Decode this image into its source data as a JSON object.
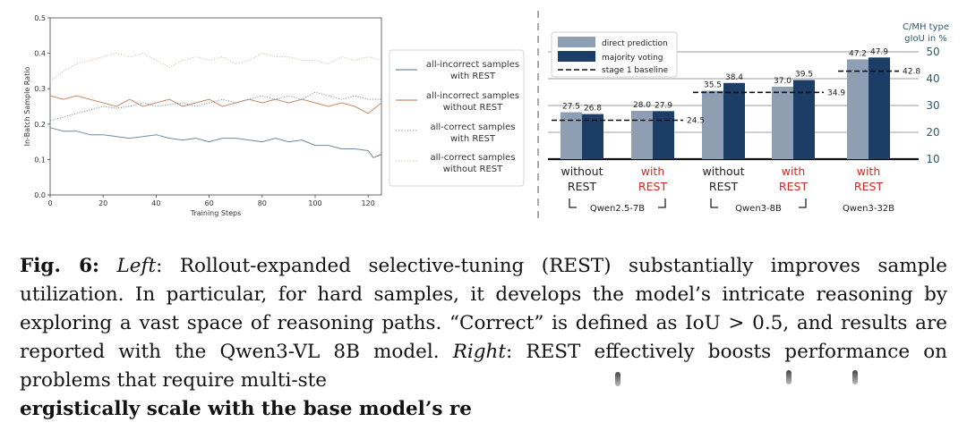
{
  "chart_data": [
    {
      "type": "line",
      "xlabel": "Training Steps",
      "ylabel": "In-Batch Sample Ratio",
      "xlim": [
        0,
        125
      ],
      "ylim": [
        0.0,
        0.5
      ],
      "xticks": [
        0,
        20,
        40,
        60,
        80,
        100,
        120
      ],
      "yticks": [
        "0.0",
        "0.1",
        "0.2",
        "0.3",
        "0.4",
        "0.5"
      ],
      "legend_position": "right",
      "series": [
        {
          "name": "all-incorrect samples with REST",
          "color": "#6f8aa0",
          "style": "solid",
          "x": [
            0,
            5,
            10,
            15,
            20,
            25,
            30,
            35,
            40,
            45,
            50,
            55,
            60,
            65,
            70,
            75,
            80,
            85,
            90,
            95,
            100,
            105,
            110,
            115,
            120,
            122,
            125
          ],
          "values": [
            0.19,
            0.18,
            0.18,
            0.17,
            0.17,
            0.165,
            0.16,
            0.165,
            0.17,
            0.16,
            0.155,
            0.16,
            0.15,
            0.16,
            0.16,
            0.155,
            0.15,
            0.16,
            0.15,
            0.155,
            0.14,
            0.14,
            0.13,
            0.13,
            0.125,
            0.105,
            0.115
          ]
        },
        {
          "name": "all-incorrect samples without REST",
          "color": "#c98d6b",
          "style": "solid",
          "x": [
            0,
            5,
            10,
            15,
            20,
            25,
            30,
            35,
            40,
            45,
            50,
            55,
            60,
            65,
            70,
            75,
            80,
            85,
            90,
            95,
            100,
            105,
            110,
            115,
            120,
            125
          ],
          "values": [
            0.28,
            0.27,
            0.28,
            0.27,
            0.26,
            0.25,
            0.27,
            0.25,
            0.26,
            0.27,
            0.25,
            0.26,
            0.27,
            0.25,
            0.26,
            0.27,
            0.26,
            0.27,
            0.26,
            0.27,
            0.26,
            0.25,
            0.26,
            0.25,
            0.23,
            0.26
          ]
        },
        {
          "name": "all-correct samples with REST",
          "color": "#6f8aa0",
          "style": "dotted",
          "x": [
            0,
            5,
            10,
            15,
            20,
            25,
            30,
            35,
            40,
            45,
            50,
            55,
            60,
            65,
            70,
            75,
            80,
            85,
            90,
            95,
            100,
            105,
            110,
            115,
            120,
            125
          ],
          "values": [
            0.21,
            0.22,
            0.23,
            0.24,
            0.25,
            0.245,
            0.25,
            0.26,
            0.25,
            0.255,
            0.26,
            0.25,
            0.26,
            0.27,
            0.26,
            0.27,
            0.28,
            0.27,
            0.28,
            0.27,
            0.29,
            0.28,
            0.27,
            0.28,
            0.27,
            0.27
          ]
        },
        {
          "name": "all-correct samples without REST",
          "color": "#e3b89b",
          "style": "dotted",
          "x": [
            0,
            5,
            10,
            15,
            20,
            25,
            30,
            35,
            40,
            45,
            50,
            55,
            60,
            65,
            70,
            75,
            80,
            85,
            90,
            95,
            100,
            105,
            110,
            115,
            120,
            125
          ],
          "values": [
            0.32,
            0.35,
            0.37,
            0.38,
            0.39,
            0.4,
            0.39,
            0.4,
            0.38,
            0.36,
            0.38,
            0.39,
            0.38,
            0.39,
            0.37,
            0.38,
            0.4,
            0.39,
            0.39,
            0.38,
            0.38,
            0.37,
            0.39,
            0.38,
            0.39,
            0.38
          ]
        }
      ]
    },
    {
      "type": "bar",
      "ylabel": "C/MH type gIoU in %",
      "ylabel_lines": [
        "C/MH type",
        "gIoU in %"
      ],
      "ylim": [
        10,
        50
      ],
      "yticks": [
        "10",
        "20",
        "30",
        "40",
        "50"
      ],
      "legend": {
        "direct": "direct prediction",
        "majority": "majority voting",
        "baseline": "stage 1 baseline"
      },
      "legend_position": "top-left",
      "colors": {
        "direct": "#8f9fb3",
        "majority": "#1c3d66",
        "with": "#cc2a2a",
        "without": "#222222"
      },
      "categories": [
        {
          "line1": "without",
          "line2": "REST",
          "rest": false,
          "direct": 27.5,
          "majority": 26.8,
          "direct_label": "27.5",
          "majority_label": "26.8"
        },
        {
          "line1": "with",
          "line2": "REST",
          "rest": true,
          "direct": 28.0,
          "majority": 27.9,
          "direct_label": "28.0",
          "majority_label": "27.9"
        },
        {
          "line1": "without",
          "line2": "REST",
          "rest": false,
          "direct": 35.5,
          "majority": 38.4,
          "direct_label": "35.5",
          "majority_label": "38.4"
        },
        {
          "line1": "with",
          "line2": "REST",
          "rest": true,
          "direct": 37.0,
          "majority": 39.5,
          "direct_label": "37.0",
          "majority_label": "39.5"
        },
        {
          "line1": "with",
          "line2": "REST",
          "rest": true,
          "direct": 47.2,
          "majority": 47.9,
          "direct_label": "47.2",
          "majority_label": "47.9"
        }
      ],
      "baselines": [
        {
          "value": 24.5,
          "label": "24.5",
          "from_cat": 0,
          "to_cat": 1
        },
        {
          "value": 34.9,
          "label": "34.9",
          "from_cat": 2,
          "to_cat": 3
        },
        {
          "value": 42.8,
          "label": "42.8",
          "from_cat": 4,
          "to_cat": 4
        }
      ],
      "groups": [
        {
          "name": "Qwen2.5-7B",
          "cats": [
            0,
            1
          ],
          "bracket": true
        },
        {
          "name": "Qwen3-8B",
          "cats": [
            2,
            3
          ],
          "bracket": true
        },
        {
          "name": "Qwen3-32B",
          "cats": [
            4,
            4
          ],
          "bracket": false
        }
      ]
    }
  ],
  "caption": {
    "fig_label": "Fig. 6:",
    "left_label": "Left",
    "left_text": ": Rollout-expanded selective-tuning (REST) substantially improves sample utilization. In particular, for hard samples, it develops the model’s intricate reasoning by exploring a vast space of reasoning paths. “Correct” is defined as IoU > 0.5, and results are reported with the Qwen3-VL 8B model. ",
    "right_label": "Right",
    "right_text": ": REST effectively boosts performance on problems that require multi-ste",
    "bold_line": "ergistically scale with the base model’s re"
  }
}
